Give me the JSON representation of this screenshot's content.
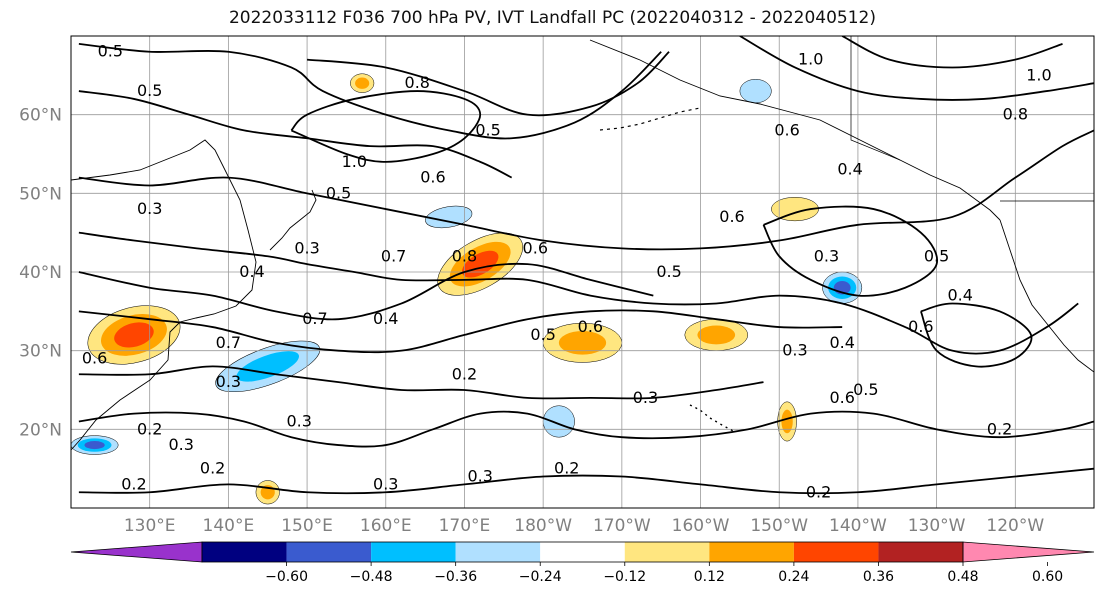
{
  "title": "2022033112 F036 700 hPa PV, IVT Landfall PC (2022040312 - 2022040512)",
  "map": {
    "projection": "PlateCarree",
    "lon_range": [
      120,
      250
    ],
    "lat_range": [
      10,
      70
    ],
    "lat_ticks": [
      {
        "lat": 20,
        "label": "20°N"
      },
      {
        "lat": 30,
        "label": "30°N"
      },
      {
        "lat": 40,
        "label": "40°N"
      },
      {
        "lat": 50,
        "label": "50°N"
      },
      {
        "lat": 60,
        "label": "60°N"
      }
    ],
    "lon_ticks": [
      {
        "lon": 130,
        "label": "130°E"
      },
      {
        "lon": 140,
        "label": "140°E"
      },
      {
        "lon": 150,
        "label": "150°E"
      },
      {
        "lon": 160,
        "label": "160°E"
      },
      {
        "lon": 170,
        "label": "170°E"
      },
      {
        "lon": 180,
        "label": "180°W"
      },
      {
        "lon": 190,
        "label": "170°W"
      },
      {
        "lon": 200,
        "label": "160°W"
      },
      {
        "lon": 210,
        "label": "150°W"
      },
      {
        "lon": 220,
        "label": "140°W"
      },
      {
        "lon": 230,
        "label": "130°W"
      },
      {
        "lon": 240,
        "label": "120°W"
      }
    ],
    "grid": true,
    "gridlines_every_deg": 10
  },
  "colorbar": {
    "levels": [
      -0.72,
      -0.6,
      -0.48,
      -0.36,
      -0.24,
      -0.12,
      0.12,
      0.24,
      0.36,
      0.48,
      0.6,
      0.72
    ],
    "colors": [
      "#9932cc",
      "#000080",
      "#3a5bcf",
      "#00bfff",
      "#b0e0ff",
      "#ffffff",
      "#ffe680",
      "#ffa500",
      "#ff4500",
      "#b22222",
      "#ff88b0"
    ],
    "tick_values": [
      -0.6,
      -0.48,
      -0.36,
      -0.24,
      -0.12,
      0.12,
      0.24,
      0.36,
      0.48,
      0.6
    ],
    "tick_labels": [
      "−0.60",
      "−0.48",
      "−0.36",
      "−0.24",
      "−0.12",
      "0.12",
      "0.24",
      "0.36",
      "0.48",
      "0.60"
    ],
    "extend": "both"
  },
  "shaded_regions": [
    {
      "label": "ridge-band-positive",
      "value": 0.48,
      "lon": 172,
      "lat": 41,
      "rx_deg": 6,
      "ry_deg": 3,
      "rot": -30
    },
    {
      "label": "japan-positive",
      "value": 0.48,
      "lon": 128,
      "lat": 32,
      "rx_deg": 6,
      "ry_deg": 3.5,
      "rot": -15
    },
    {
      "label": "central-pacific-positive",
      "value": 0.36,
      "lon": 185,
      "lat": 31,
      "rx_deg": 5,
      "ry_deg": 2.5,
      "rot": 0
    },
    {
      "label": "hawaii-north-positive",
      "value": 0.36,
      "lon": 202,
      "lat": 32,
      "rx_deg": 4,
      "ry_deg": 2,
      "rot": 0
    },
    {
      "label": "jet-negative",
      "value": -0.36,
      "lon": 145,
      "lat": 28,
      "rx_deg": 7,
      "ry_deg": 2.3,
      "rot": -20
    },
    {
      "label": "gulf-alaska-negative",
      "value": -0.48,
      "lon": 218,
      "lat": 38,
      "rx_deg": 2.5,
      "ry_deg": 2,
      "rot": 0
    },
    {
      "label": "philippine-negative",
      "value": -0.48,
      "lon": 123,
      "lat": 18,
      "rx_deg": 3,
      "ry_deg": 1.2,
      "rot": 0
    },
    {
      "label": "bering-negative",
      "value": -0.24,
      "lon": 207,
      "lat": 63,
      "rx_deg": 2,
      "ry_deg": 1.5,
      "rot": 0
    },
    {
      "label": "kuroshio-negative",
      "value": -0.24,
      "lon": 168,
      "lat": 47,
      "rx_deg": 3,
      "ry_deg": 1.3,
      "rot": -10
    },
    {
      "label": "subtropical-negative",
      "value": -0.24,
      "lon": 182,
      "lat": 21,
      "rx_deg": 2,
      "ry_deg": 2,
      "rot": 0
    },
    {
      "label": "ok-positive",
      "value": 0.24,
      "lon": 212,
      "lat": 48,
      "rx_deg": 3,
      "ry_deg": 1.5,
      "rot": 0
    },
    {
      "label": "kamchatka-positive",
      "value": 0.36,
      "lon": 157,
      "lat": 64,
      "rx_deg": 1.5,
      "ry_deg": 1.2,
      "rot": 0
    },
    {
      "label": "south-positive",
      "value": 0.36,
      "lon": 145,
      "lat": 12,
      "rx_deg": 1.5,
      "ry_deg": 1.5,
      "rot": 0
    },
    {
      "label": "subtrop-positive-2",
      "value": 0.36,
      "lon": 211,
      "lat": 21,
      "rx_deg": 1.2,
      "ry_deg": 2.5,
      "rot": 0
    }
  ],
  "contour_labels": [
    {
      "text": "0.5",
      "lon": 125,
      "lat": 68
    },
    {
      "text": "0.5",
      "lon": 130,
      "lat": 63
    },
    {
      "text": "0.8",
      "lon": 164,
      "lat": 64
    },
    {
      "text": "0.5",
      "lon": 173,
      "lat": 58
    },
    {
      "text": "1.0",
      "lon": 156,
      "lat": 54
    },
    {
      "text": "0.6",
      "lon": 166,
      "lat": 52
    },
    {
      "text": "0.5",
      "lon": 154,
      "lat": 50
    },
    {
      "text": "1.0",
      "lon": 214,
      "lat": 67
    },
    {
      "text": "0.6",
      "lon": 211,
      "lat": 58
    },
    {
      "text": "0.4",
      "lon": 219,
      "lat": 53
    },
    {
      "text": "0.8",
      "lon": 240,
      "lat": 60
    },
    {
      "text": "1.0",
      "lon": 243,
      "lat": 65
    },
    {
      "text": "0.3",
      "lon": 130,
      "lat": 48
    },
    {
      "text": "0.3",
      "lon": 150,
      "lat": 43
    },
    {
      "text": "0.4",
      "lon": 143,
      "lat": 40
    },
    {
      "text": "0.7",
      "lon": 161,
      "lat": 42
    },
    {
      "text": "0.8",
      "lon": 170,
      "lat": 42
    },
    {
      "text": "0.6",
      "lon": 179,
      "lat": 43
    },
    {
      "text": "0.6",
      "lon": 204,
      "lat": 47
    },
    {
      "text": "0.5",
      "lon": 196,
      "lat": 40
    },
    {
      "text": "0.3",
      "lon": 216,
      "lat": 42
    },
    {
      "text": "0.5",
      "lon": 230,
      "lat": 42
    },
    {
      "text": "0.7",
      "lon": 151,
      "lat": 34
    },
    {
      "text": "0.4",
      "lon": 160,
      "lat": 34
    },
    {
      "text": "0.7",
      "lon": 140,
      "lat": 31
    },
    {
      "text": "0.6",
      "lon": 123,
      "lat": 29
    },
    {
      "text": "0.5",
      "lon": 180,
      "lat": 32
    },
    {
      "text": "0.6",
      "lon": 186,
      "lat": 33
    },
    {
      "text": "0.3",
      "lon": 212,
      "lat": 30
    },
    {
      "text": "0.4",
      "lon": 218,
      "lat": 31
    },
    {
      "text": "0.2",
      "lon": 170,
      "lat": 27
    },
    {
      "text": "0.6",
      "lon": 228,
      "lat": 33
    },
    {
      "text": "0.4",
      "lon": 233,
      "lat": 37
    },
    {
      "text": "0.3",
      "lon": 140,
      "lat": 26
    },
    {
      "text": "0.3",
      "lon": 193,
      "lat": 24
    },
    {
      "text": "0.6",
      "lon": 218,
      "lat": 24
    },
    {
      "text": "0.5",
      "lon": 221,
      "lat": 25
    },
    {
      "text": "0.2",
      "lon": 130,
      "lat": 20
    },
    {
      "text": "0.3",
      "lon": 134,
      "lat": 18
    },
    {
      "text": "0.3",
      "lon": 149,
      "lat": 21
    },
    {
      "text": "0.2",
      "lon": 138,
      "lat": 15
    },
    {
      "text": "0.2",
      "lon": 128,
      "lat": 13
    },
    {
      "text": "0.2",
      "lon": 183,
      "lat": 15
    },
    {
      "text": "0.3",
      "lon": 160,
      "lat": 13
    },
    {
      "text": "0.3",
      "lon": 172,
      "lat": 14
    },
    {
      "text": "0.2",
      "lon": 215,
      "lat": 12
    },
    {
      "text": "0.2",
      "lon": 238,
      "lat": 20
    }
  ],
  "contour_lines": [
    {
      "lonlat": [
        [
          121,
          69
        ],
        [
          130,
          68
        ],
        [
          140,
          68
        ],
        [
          148,
          66
        ],
        [
          152,
          63
        ],
        [
          160,
          60
        ],
        [
          168,
          58
        ],
        [
          176,
          57
        ],
        [
          184,
          59
        ],
        [
          190,
          63
        ],
        [
          195,
          68
        ]
      ]
    },
    {
      "lonlat": [
        [
          121,
          63
        ],
        [
          128,
          62
        ],
        [
          135,
          60
        ],
        [
          142,
          58
        ],
        [
          150,
          57
        ],
        [
          158,
          56
        ],
        [
          166,
          56
        ],
        [
          172,
          54
        ],
        [
          176,
          52
        ]
      ]
    },
    {
      "lonlat": [
        [
          150,
          67
        ],
        [
          160,
          66
        ],
        [
          170,
          63
        ],
        [
          178,
          60
        ],
        [
          186,
          61
        ],
        [
          192,
          64
        ],
        [
          196,
          68
        ]
      ]
    },
    {
      "lonlat": [
        [
          148,
          58
        ],
        [
          155,
          55
        ],
        [
          160,
          54
        ],
        [
          166,
          55
        ],
        [
          170,
          57
        ],
        [
          172,
          60
        ],
        [
          170,
          62
        ],
        [
          164,
          63
        ],
        [
          156,
          62
        ],
        [
          150,
          60
        ],
        [
          148,
          58
        ]
      ]
    },
    {
      "lonlat": [
        [
          121,
          52
        ],
        [
          130,
          51
        ],
        [
          140,
          52
        ],
        [
          150,
          50
        ],
        [
          160,
          48
        ],
        [
          170,
          46
        ],
        [
          180,
          44
        ],
        [
          190,
          43
        ],
        [
          200,
          43
        ],
        [
          210,
          44
        ],
        [
          220,
          46
        ],
        [
          232,
          47
        ],
        [
          240,
          52
        ],
        [
          246,
          56
        ],
        [
          250,
          58
        ]
      ]
    },
    {
      "lonlat": [
        [
          121,
          45
        ],
        [
          128,
          44
        ],
        [
          136,
          43
        ],
        [
          145,
          42
        ],
        [
          150,
          41
        ],
        [
          156,
          40
        ],
        [
          162,
          39
        ],
        [
          170,
          39
        ],
        [
          178,
          39
        ],
        [
          186,
          37
        ],
        [
          194,
          36
        ],
        [
          202,
          36
        ],
        [
          210,
          37
        ],
        [
          218,
          36
        ],
        [
          226,
          33
        ],
        [
          232,
          30
        ],
        [
          238,
          30
        ],
        [
          244,
          33
        ],
        [
          248,
          36
        ]
      ]
    },
    {
      "lonlat": [
        [
          121,
          40
        ],
        [
          130,
          38
        ],
        [
          138,
          37
        ],
        [
          146,
          35
        ],
        [
          154,
          34
        ],
        [
          162,
          36
        ],
        [
          170,
          40
        ],
        [
          178,
          41
        ],
        [
          186,
          39
        ],
        [
          194,
          37
        ]
      ]
    },
    {
      "lonlat": [
        [
          121,
          35
        ],
        [
          130,
          34
        ],
        [
          138,
          33
        ],
        [
          146,
          31
        ],
        [
          154,
          30
        ],
        [
          162,
          30
        ],
        [
          170,
          32
        ],
        [
          178,
          34
        ],
        [
          186,
          35
        ],
        [
          194,
          35
        ],
        [
          202,
          34
        ],
        [
          210,
          33
        ],
        [
          218,
          33
        ]
      ]
    },
    {
      "lonlat": [
        [
          121,
          27
        ],
        [
          130,
          27
        ],
        [
          138,
          28
        ],
        [
          146,
          27
        ],
        [
          154,
          26
        ],
        [
          162,
          25
        ],
        [
          170,
          25
        ],
        [
          178,
          24
        ],
        [
          186,
          24
        ],
        [
          194,
          24
        ],
        [
          202,
          25
        ],
        [
          208,
          26
        ]
      ]
    },
    {
      "lonlat": [
        [
          121,
          21
        ],
        [
          128,
          22
        ],
        [
          136,
          22
        ],
        [
          142,
          21
        ],
        [
          148,
          19
        ],
        [
          154,
          18
        ],
        [
          160,
          18
        ],
        [
          166,
          20
        ],
        [
          172,
          22
        ],
        [
          178,
          22
        ],
        [
          184,
          20
        ],
        [
          190,
          19
        ],
        [
          198,
          19
        ],
        [
          206,
          20
        ],
        [
          214,
          22
        ],
        [
          222,
          22
        ],
        [
          230,
          20
        ],
        [
          238,
          19
        ],
        [
          246,
          20
        ],
        [
          250,
          21
        ]
      ]
    },
    {
      "lonlat": [
        [
          121,
          12
        ],
        [
          130,
          12
        ],
        [
          140,
          13
        ],
        [
          150,
          12
        ],
        [
          160,
          12
        ],
        [
          170,
          13
        ],
        [
          180,
          14
        ],
        [
          190,
          14
        ],
        [
          200,
          13
        ],
        [
          210,
          12
        ],
        [
          220,
          12
        ],
        [
          230,
          13
        ],
        [
          240,
          14
        ],
        [
          250,
          15
        ]
      ]
    },
    {
      "lonlat": [
        [
          208,
          46
        ],
        [
          214,
          48
        ],
        [
          222,
          48
        ],
        [
          228,
          45
        ],
        [
          230,
          41
        ],
        [
          226,
          38
        ],
        [
          220,
          37
        ],
        [
          214,
          39
        ],
        [
          210,
          42
        ],
        [
          208,
          46
        ]
      ]
    },
    {
      "lonlat": [
        [
          228,
          35
        ],
        [
          232,
          36
        ],
        [
          238,
          35
        ],
        [
          242,
          32
        ],
        [
          240,
          29
        ],
        [
          235,
          28
        ],
        [
          230,
          30
        ],
        [
          228,
          35
        ]
      ]
    },
    {
      "lonlat": [
        [
          205,
          70
        ],
        [
          212,
          66
        ],
        [
          220,
          63
        ],
        [
          228,
          62
        ],
        [
          236,
          62
        ],
        [
          244,
          63
        ],
        [
          250,
          64
        ]
      ]
    },
    {
      "lonlat": [
        [
          218,
          70
        ],
        [
          224,
          67
        ],
        [
          232,
          66
        ],
        [
          240,
          67
        ],
        [
          246,
          69
        ]
      ]
    }
  ]
}
